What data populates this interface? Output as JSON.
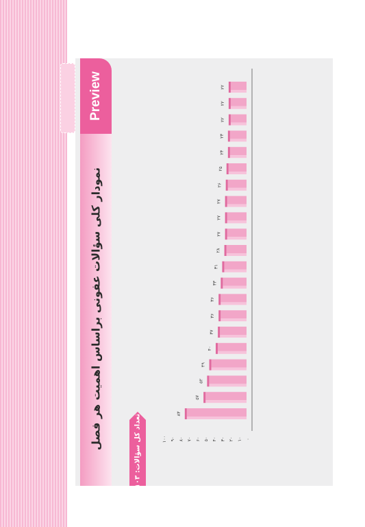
{
  "header": {
    "preview_label": "Preview",
    "title": "نمودار کلی سؤالات عفونی براساس اهمیت هر فصل",
    "total_label": "تعداد کل سؤالات: ۱۱۰۳"
  },
  "chart_data": {
    "type": "bar",
    "orientation": "horizontal",
    "title": "نمودار کلی سؤالات عفونی براساس اهمیت هر فصل",
    "xlabel": "",
    "ylabel": "",
    "xlim": [
      0,
      100
    ],
    "ticks": [
      0,
      10,
      20,
      30,
      40,
      50,
      60,
      70,
      80,
      90,
      100
    ],
    "tick_labels": [
      "۰",
      "۱۰",
      "۲۰",
      "۳۰",
      "۴۰",
      "۵۰",
      "۶۰",
      "۷۰",
      "۸۰",
      "۹۰",
      "۱۰۰"
    ],
    "values": [
      22,
      22,
      22,
      23,
      23,
      25,
      26,
      27,
      27,
      27,
      28,
      31,
      33,
      36,
      36,
      37,
      40,
      49,
      52,
      57,
      83
    ],
    "value_labels": [
      "۲۲",
      "۲۲",
      "۲۲",
      "۲۳",
      "۲۳",
      "۲۵",
      "۲۶",
      "۲۷",
      "۲۷",
      "۲۷",
      "۲۸",
      "۳۱",
      "۳۳",
      "۳۶",
      "۳۶",
      "۳۷",
      "۴۰",
      "۴۹",
      "۵۲",
      "۵۷",
      "۸۳"
    ],
    "categories": [
      "",
      "",
      "",
      "",
      "",
      "",
      "",
      "",
      "",
      "",
      "",
      "",
      "",
      "",
      "",
      "",
      "",
      "",
      "",
      "",
      ""
    ],
    "chapter_labels": [
      "",
      "",
      "",
      "",
      "",
      "",
      "",
      "",
      "",
      "",
      "",
      "",
      "",
      "",
      "",
      "",
      "",
      "",
      "",
      "",
      ""
    ],
    "bar_color": "#f2a6c8",
    "bar_face_color": "#f7c3db",
    "bar_edge_color": "#e06a9f",
    "accent_color": "#ec5f9d"
  }
}
